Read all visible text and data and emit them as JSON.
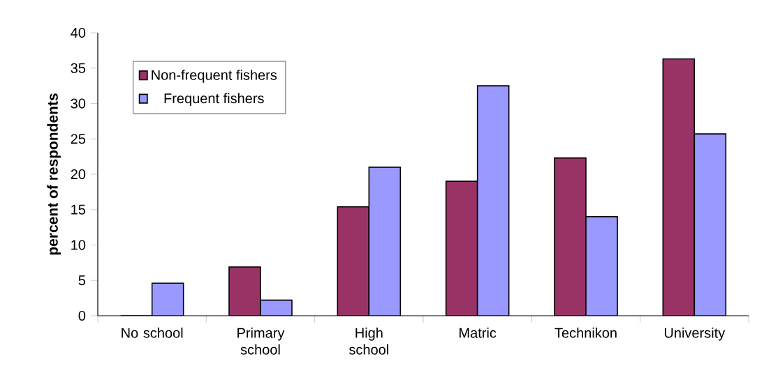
{
  "chart_data": {
    "type": "bar",
    "ylabel": "percent of respondents",
    "categories": [
      "No school",
      "Primary school",
      "High school",
      "Matric",
      "Technikon",
      "University"
    ],
    "series": [
      {
        "name": "Non-frequent fishers",
        "color": "#993366",
        "values": [
          0,
          6.9,
          15.4,
          19.0,
          22.3,
          36.3
        ]
      },
      {
        "name": "Frequent fishers",
        "color": "#9999ff",
        "values": [
          4.6,
          2.2,
          21.0,
          32.5,
          14.0,
          25.7
        ]
      }
    ],
    "ylim": [
      0,
      40
    ],
    "yticks": [
      0,
      5,
      10,
      15,
      20,
      25,
      30,
      35,
      40
    ],
    "grid": false,
    "legend": "top left"
  }
}
